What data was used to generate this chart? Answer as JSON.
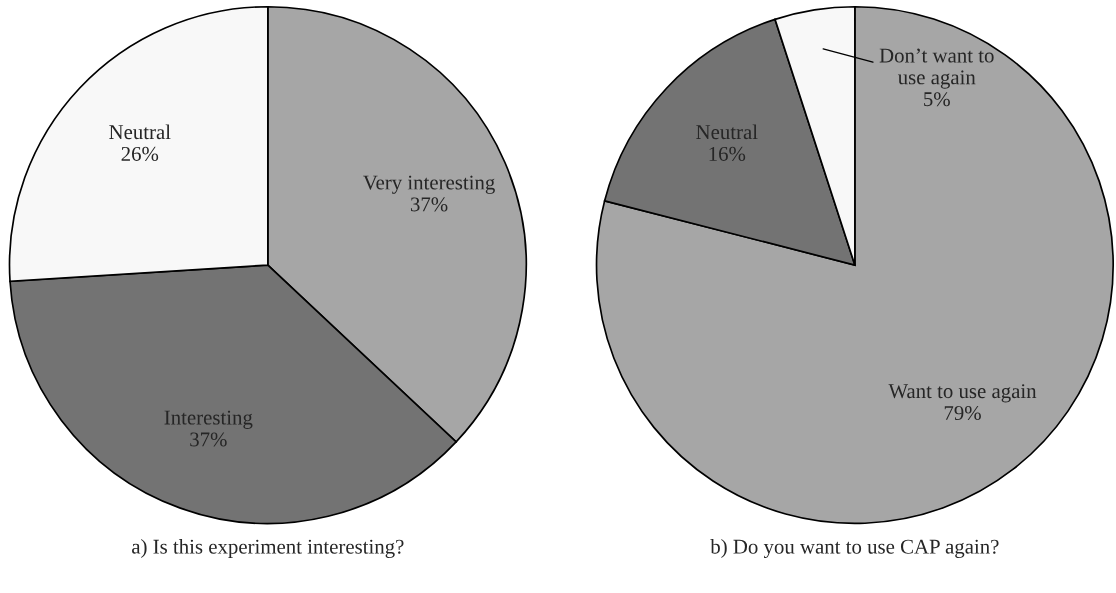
{
  "chart_data": [
    {
      "type": "pie",
      "title": "a) Is this experiment interesting?",
      "categories": [
        "Very interesting",
        "Interesting",
        "Neutral"
      ],
      "values": [
        37,
        37,
        26
      ],
      "value_labels": [
        "37%",
        "37%",
        "26%"
      ],
      "colors": [
        "#a6a6a6",
        "#737373",
        "#f8f8f8"
      ]
    },
    {
      "type": "pie",
      "title": "b) Do you want to use CAP again?",
      "categories": [
        "Want to use again",
        "Neutral",
        "Don’t want to\nuse again"
      ],
      "values": [
        79,
        16,
        5
      ],
      "value_labels": [
        "79%",
        "16%",
        "5%"
      ],
      "colors": [
        "#a6a6a6",
        "#737373",
        "#f8f8f8"
      ]
    }
  ]
}
